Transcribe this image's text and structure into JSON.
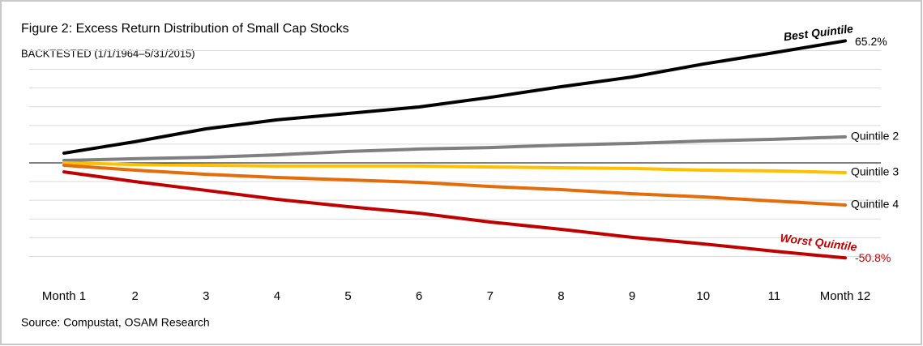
{
  "chart_data": {
    "type": "line",
    "title": "Figure 2: Excess Return Distribution of Small Cap Stocks",
    "subtitle": "BACKTESTED (1/1/1964–5/31/2015)",
    "source": "Source: Compustat, OSAM Research",
    "categories": [
      "Month 1",
      "2",
      "3",
      "4",
      "5",
      "6",
      "7",
      "8",
      "9",
      "10",
      "11",
      "Month 12"
    ],
    "series": [
      {
        "name": "Best Quintile",
        "color": "#000000",
        "values": [
          5.2,
          11.3,
          18.2,
          23,
          26.4,
          29.9,
          35,
          40.7,
          45.9,
          52.8,
          58.9,
          65.2
        ],
        "value_labels": [
          null,
          null,
          null,
          null,
          null,
          null,
          null,
          null,
          null,
          null,
          null,
          "65.2%"
        ]
      },
      {
        "name": "Quintile 2",
        "color": "#7f7f7f",
        "values": [
          1.3,
          2.2,
          3,
          4.3,
          6.1,
          7.4,
          8.2,
          9.5,
          10.4,
          11.7,
          12.6,
          13.9
        ]
      },
      {
        "name": "Quintile 3",
        "color": "#ffc000",
        "values": [
          0,
          -0.9,
          -1.3,
          -1.7,
          -1.7,
          -1.7,
          -2.2,
          -2.6,
          -3,
          -3.9,
          -4.3,
          -5.2
        ]
      },
      {
        "name": "Quintile 4",
        "color": "#e46c0a",
        "values": [
          -1.3,
          -3.9,
          -6.1,
          -7.8,
          -9.1,
          -10.4,
          -12.6,
          -14.3,
          -16.5,
          -18.2,
          -20.4,
          -22.5
        ]
      },
      {
        "name": "Worst Quintile",
        "color": "#c00000",
        "values": [
          -4.8,
          -10,
          -14.7,
          -19.5,
          -23.4,
          -26.9,
          -31.6,
          -35.5,
          -39.8,
          -43.3,
          -47.2,
          -50.8
        ],
        "value_labels": [
          null,
          null,
          null,
          null,
          null,
          null,
          null,
          null,
          null,
          null,
          null,
          "-50.8%"
        ]
      }
    ],
    "ylim": [
      -60,
      70
    ],
    "yticks": [
      -50,
      -40,
      -30,
      -20,
      -10,
      0,
      10,
      20,
      30,
      40,
      50,
      60
    ],
    "grid": true
  }
}
